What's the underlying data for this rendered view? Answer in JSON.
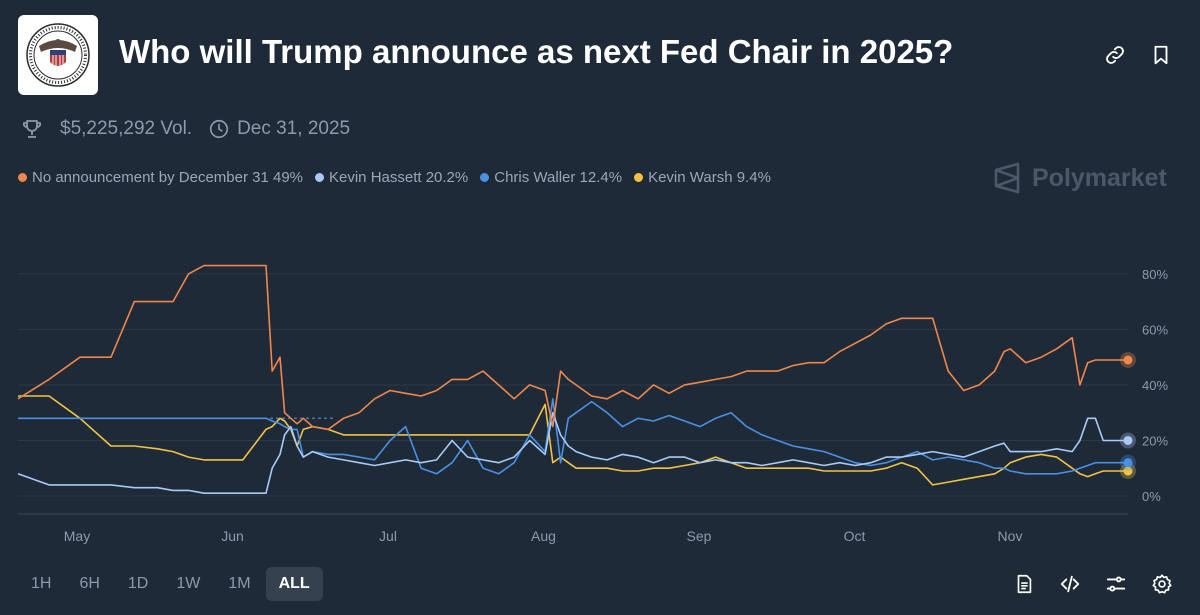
{
  "header": {
    "title": "Who will Trump announce as next Fed Chair in 2025?",
    "logo_text": "BOARD OF GOVERNORS OF THE FEDERAL RESERVE SYSTEM",
    "volume": "$5,225,292 Vol.",
    "end_date": "Dec 31, 2025"
  },
  "brand": {
    "name": "Polymarket"
  },
  "timeframes": [
    "1H",
    "6H",
    "1D",
    "1W",
    "1M",
    "ALL"
  ],
  "active_timeframe": "ALL",
  "icons": {
    "link": "link-icon",
    "bookmark": "bookmark-icon",
    "trophy": "trophy-icon",
    "clock": "clock-icon",
    "document": "document-icon",
    "embed": "code-icon",
    "filters": "sliders-icon",
    "settings": "gear-icon"
  },
  "chart_data": {
    "type": "line",
    "title": "Who will Trump announce as next Fed Chair in 2025?",
    "x_tick_labels": [
      "May",
      "Jun",
      "Jul",
      "Aug",
      "Sep",
      "Oct",
      "Nov"
    ],
    "x": [
      0,
      2,
      4,
      6,
      7.5,
      9,
      10,
      11,
      12,
      13,
      14.5,
      16,
      16.4,
      16.9,
      17.2,
      17.6,
      18,
      18.4,
      19,
      20,
      21,
      22,
      23,
      24,
      25,
      26,
      27,
      28,
      29,
      30,
      31,
      32,
      33,
      34,
      34.5,
      35,
      35.5,
      36,
      37,
      38,
      39,
      40,
      41,
      42,
      43,
      44,
      45,
      46,
      47,
      48,
      49,
      50,
      51,
      52,
      53,
      54,
      55,
      56,
      57,
      58,
      59,
      60,
      61,
      62,
      63,
      63.6,
      64,
      65,
      66,
      67,
      68,
      68.5,
      69,
      69.5,
      70,
      70.5,
      71,
      71.6
    ],
    "y_ticks": [
      0,
      20,
      40,
      60,
      80
    ],
    "y_tick_labels": [
      "0%",
      "20%",
      "40%",
      "60%",
      "80%"
    ],
    "ylim": [
      0,
      85
    ],
    "reference_line": 28,
    "series": [
      {
        "name": "No announcement by December 31",
        "label": "No announcement by December 31 49%",
        "color": "#f0874a",
        "values": [
          35,
          42,
          50,
          50,
          70,
          70,
          70,
          80,
          83,
          83,
          83,
          83,
          45,
          50,
          30,
          28,
          26,
          28,
          25,
          24,
          28,
          30,
          35,
          38,
          37,
          36,
          38,
          42,
          42,
          45,
          40,
          35,
          40,
          38,
          25,
          45,
          42,
          40,
          36,
          35,
          38,
          35,
          40,
          37,
          40,
          41,
          42,
          43,
          45,
          45,
          45,
          47,
          48,
          48,
          52,
          55,
          58,
          62,
          64,
          64,
          64,
          45,
          38,
          40,
          45,
          52,
          53,
          48,
          50,
          53,
          57,
          40,
          48,
          49,
          49,
          49,
          49,
          49
        ]
      },
      {
        "name": "Kevin Hassett",
        "label": "Kevin Hassett 20.2%",
        "color": "#a9c9f7",
        "values": [
          8,
          4,
          4,
          4,
          3,
          3,
          2,
          2,
          1,
          1,
          1,
          1,
          10,
          15,
          22,
          25,
          18,
          14,
          16,
          14,
          13,
          12,
          11,
          12,
          13,
          12,
          13,
          20,
          14,
          13,
          12,
          14,
          20,
          15,
          30,
          22,
          18,
          16,
          14,
          13,
          15,
          14,
          12,
          14,
          14,
          12,
          13,
          12,
          12,
          11,
          12,
          13,
          12,
          11,
          12,
          11,
          12,
          14,
          14,
          15,
          16,
          15,
          14,
          16,
          18,
          19,
          16,
          16,
          16,
          17,
          16,
          20,
          28,
          28,
          20,
          20,
          20,
          20
        ]
      },
      {
        "name": "Chris Waller",
        "label": "Chris Waller 12.4%",
        "color": "#4a90e2",
        "values": [
          28,
          28,
          28,
          28,
          28,
          28,
          28,
          28,
          28,
          28,
          28,
          28,
          27,
          26,
          25,
          24,
          24,
          14,
          16,
          15,
          15,
          14,
          13,
          20,
          25,
          10,
          8,
          12,
          20,
          10,
          8,
          12,
          22,
          16,
          35,
          12,
          28,
          30,
          34,
          30,
          25,
          28,
          27,
          29,
          27,
          25,
          28,
          30,
          25,
          22,
          20,
          18,
          17,
          16,
          14,
          12,
          11,
          12,
          14,
          16,
          13,
          14,
          13,
          12,
          10,
          10,
          9,
          8,
          8,
          8,
          9,
          10,
          11,
          12,
          12,
          12,
          12,
          12
        ]
      },
      {
        "name": "Kevin Warsh",
        "label": "Kevin Warsh 9.4%",
        "color": "#f3c244",
        "values": [
          36,
          36,
          28,
          18,
          18,
          17,
          16,
          14,
          13,
          13,
          13,
          24,
          25,
          28,
          27,
          24,
          18,
          24,
          25,
          24,
          22,
          22,
          22,
          22,
          22,
          22,
          22,
          22,
          22,
          22,
          22,
          22,
          22,
          33,
          12,
          14,
          12,
          10,
          10,
          10,
          9,
          9,
          10,
          10,
          11,
          12,
          14,
          12,
          10,
          10,
          10,
          10,
          10,
          9,
          9,
          9,
          9,
          10,
          12,
          10,
          4,
          5,
          6,
          7,
          8,
          10,
          12,
          14,
          15,
          14,
          10,
          8,
          7,
          8,
          9,
          9,
          9,
          9
        ]
      }
    ]
  }
}
